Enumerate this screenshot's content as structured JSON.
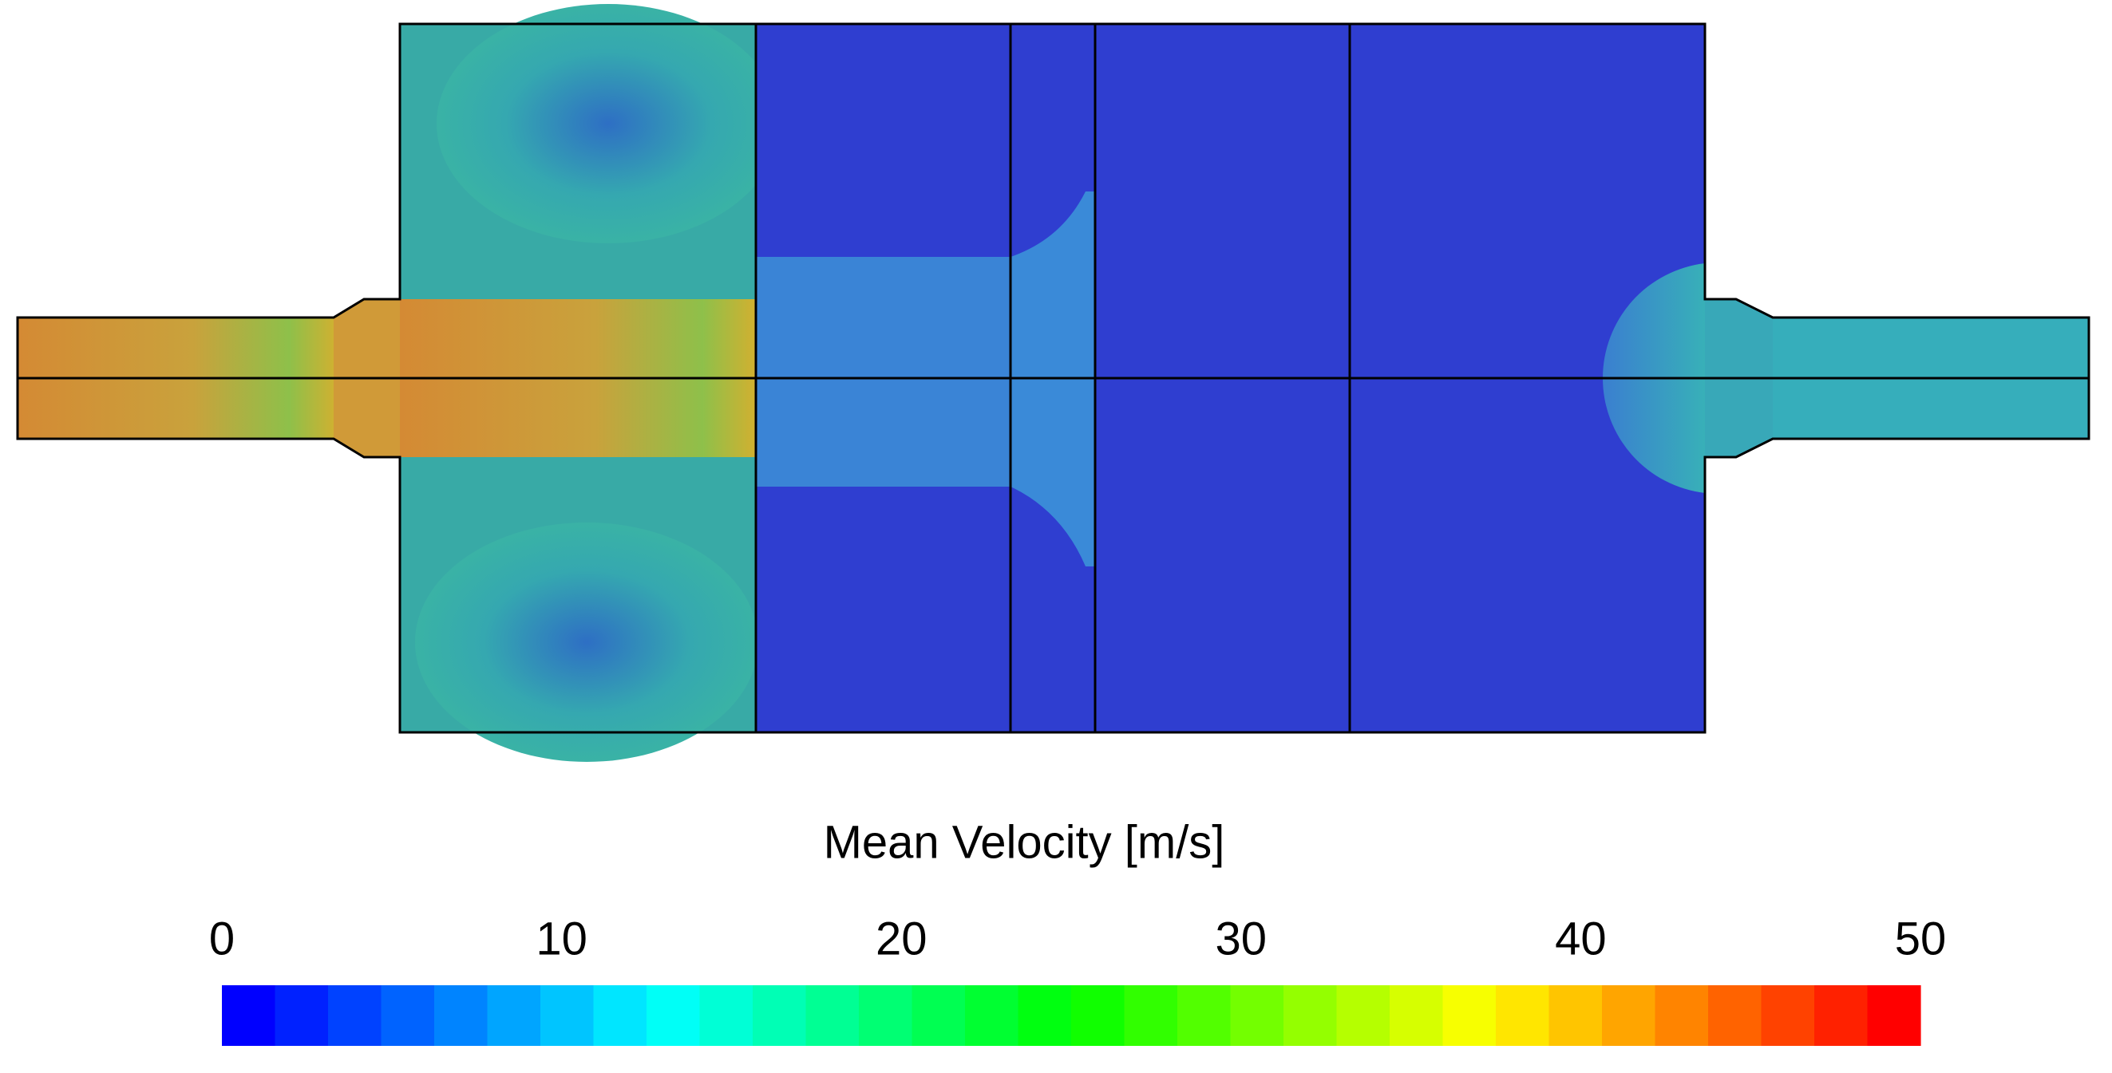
{
  "chart_data": {
    "type": "colorbar",
    "title": "Mean Velocity [m/s]",
    "xlim": [
      0,
      50
    ],
    "xticks": [
      0,
      10,
      20,
      30,
      40,
      50
    ]
  }
}
